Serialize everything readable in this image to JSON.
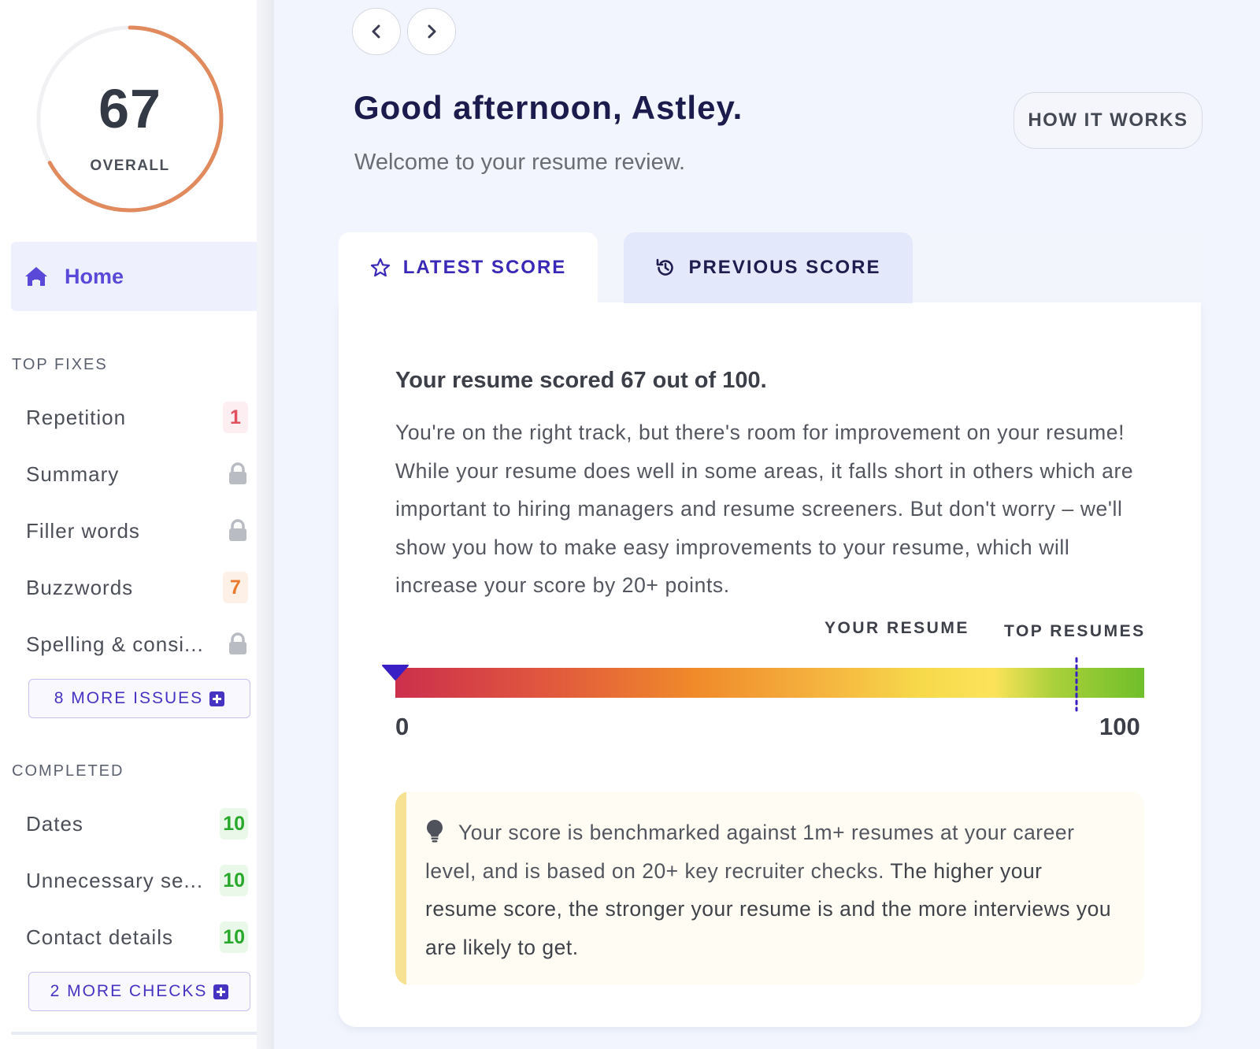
{
  "sidebar": {
    "score": {
      "value": "67",
      "label": "OVERALL",
      "fraction": 0.67,
      "ring_color": "#e08a5e",
      "track_color": "#f1f1f3"
    },
    "home": {
      "label": "Home",
      "icon": "home-icon"
    },
    "top_fixes": {
      "title": "TOP FIXES",
      "items": [
        {
          "label": "Repetition",
          "badge": "1",
          "badge_color": "red"
        },
        {
          "label": "Summary",
          "locked": true
        },
        {
          "label": "Filler words",
          "locked": true
        },
        {
          "label": "Buzzwords",
          "badge": "7",
          "badge_color": "orange"
        },
        {
          "label": "Spelling & consi...",
          "locked": true
        }
      ],
      "more_button": "8 MORE ISSUES"
    },
    "completed": {
      "title": "COMPLETED",
      "items": [
        {
          "label": "Dates",
          "badge": "10",
          "badge_color": "green"
        },
        {
          "label": "Unnecessary se...",
          "badge": "10",
          "badge_color": "green"
        },
        {
          "label": "Contact details",
          "badge": "10",
          "badge_color": "green"
        }
      ],
      "more_button": "2 MORE CHECKS"
    }
  },
  "header": {
    "greeting": "Good afternoon, Astley.",
    "welcome": "Welcome to your resume review.",
    "how_it_works": "HOW IT WORKS"
  },
  "tabs": {
    "latest": "LATEST SCORE",
    "previous": "PREVIOUS SCORE"
  },
  "card": {
    "heading": "Your resume scored 67 out of 100.",
    "body": "You're on the right track, but there's room for improvement on your resume! While your resume does well in some areas, it falls short in others which are important to hiring managers and resume screeners. But don't worry – we'll show you how to make easy improvements to your resume, which will increase your score by 20+ points.",
    "bar": {
      "your_label": "YOUR RESUME",
      "top_label": "TOP RESUMES",
      "min": "0",
      "max": "100",
      "top_resumes_value": 91
    },
    "tip": {
      "plain": "Your score is benchmarked against 1m+ resumes at your career level, and is based on 20+ key recruiter checks. ",
      "emphasis": "The higher your resume score, the stronger your resume is and the more interviews you are likely to get."
    }
  }
}
